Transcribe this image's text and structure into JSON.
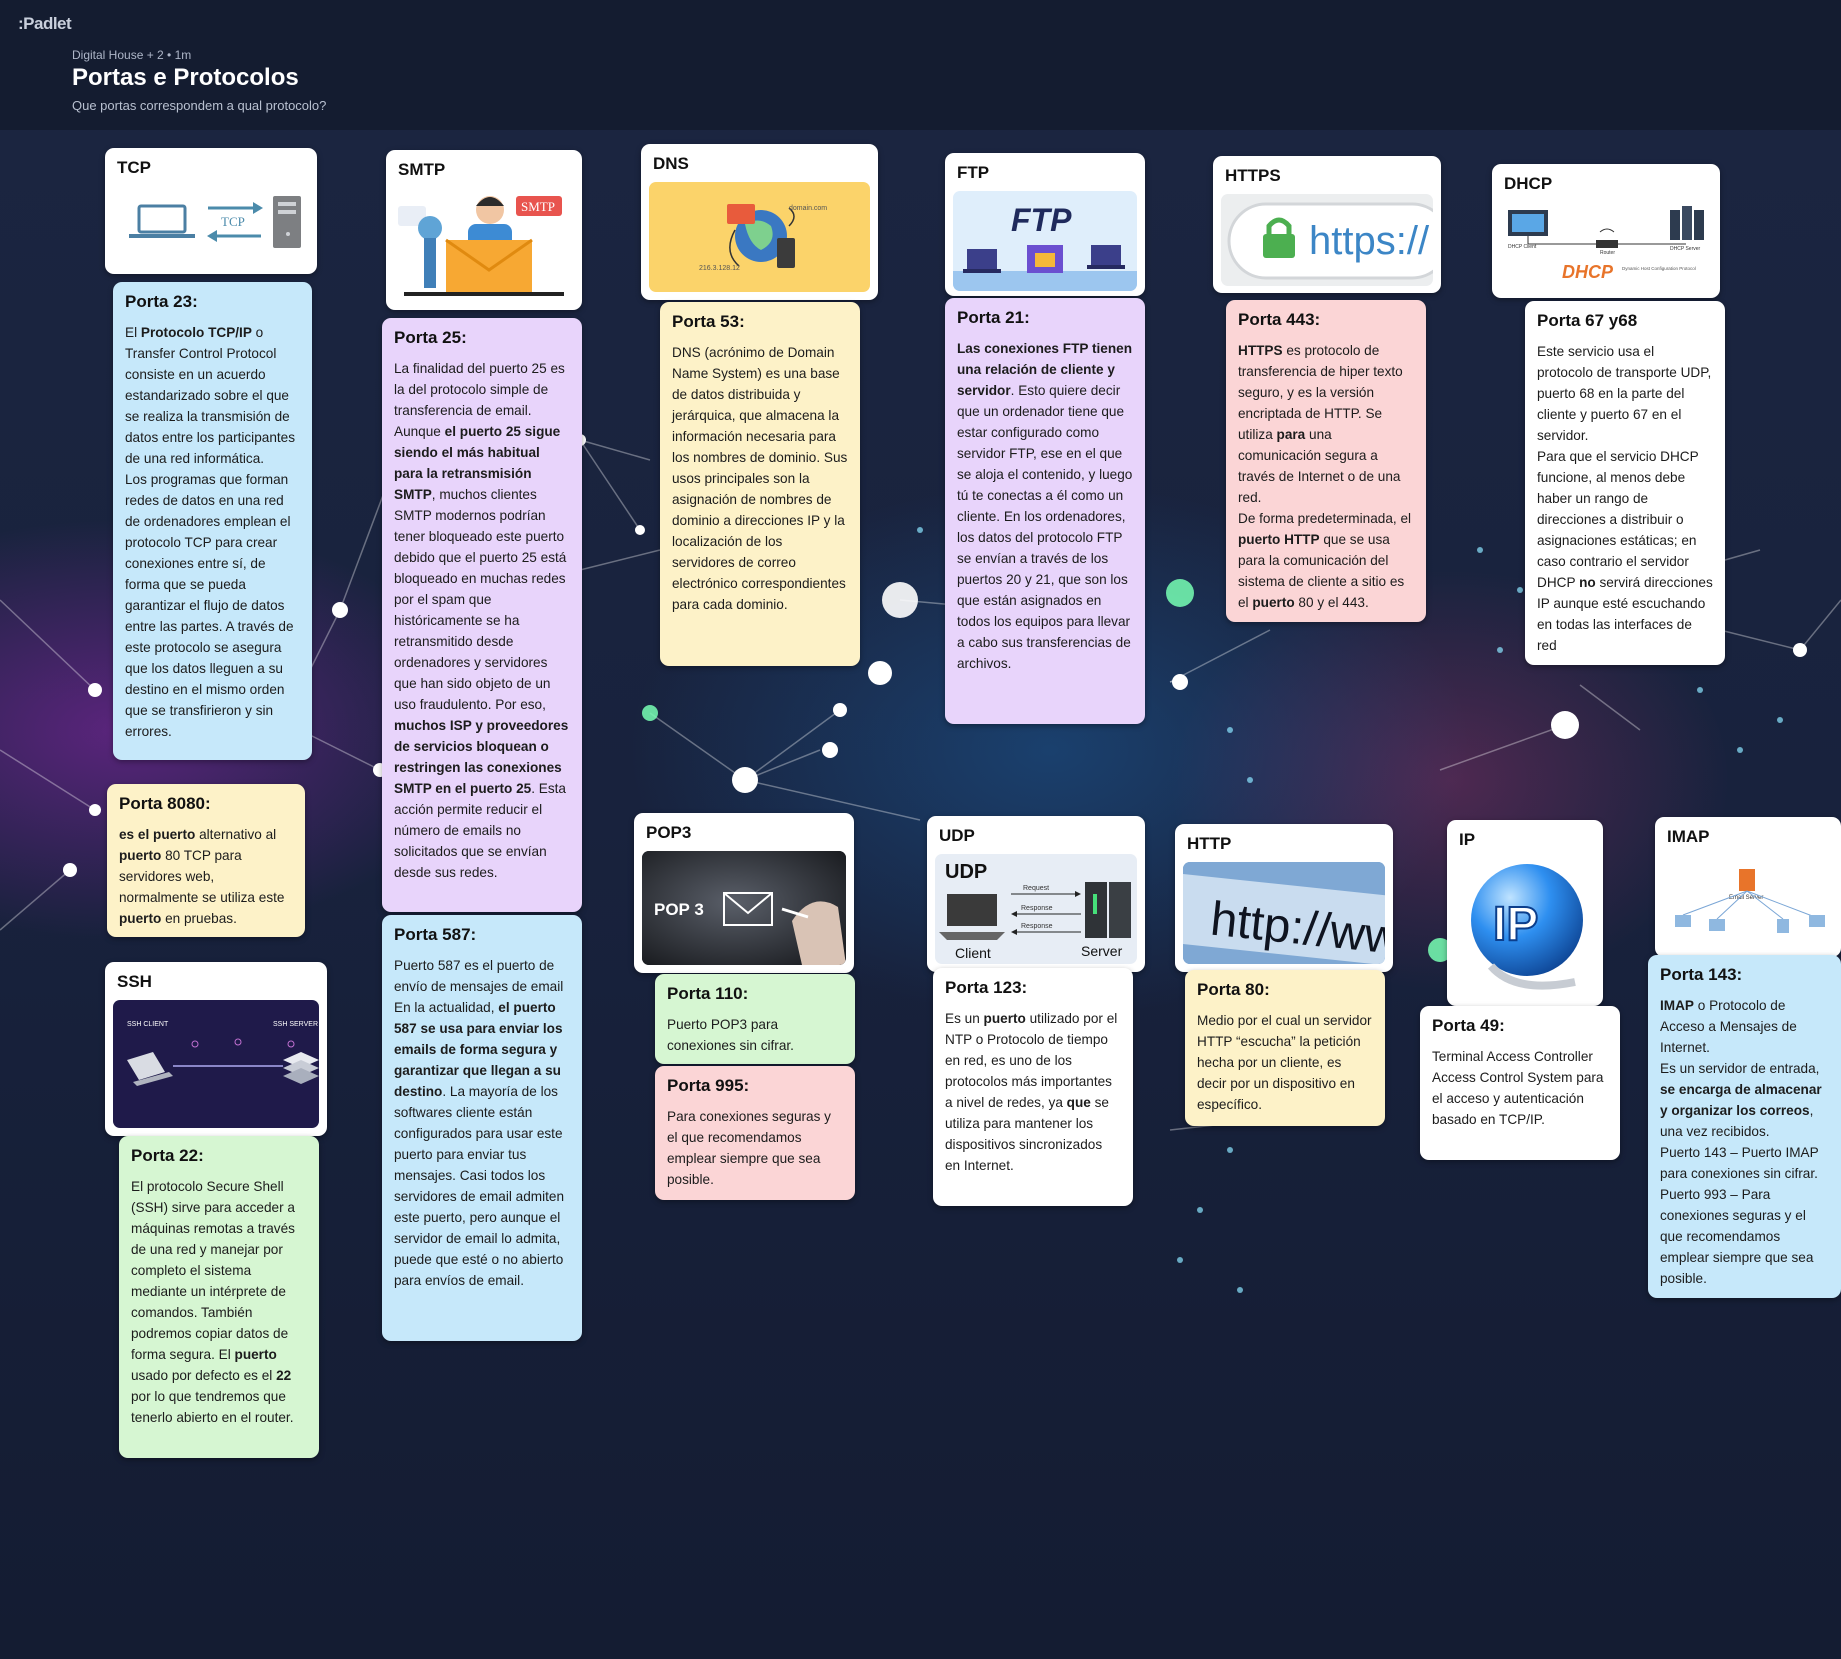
{
  "header": {
    "logo": ":Padlet",
    "meta": "Digital House + 2 • 1m",
    "title": "Portas e Protocolos",
    "subtitle": "Que portas correspondem a qual protocolo?"
  },
  "image_cards": {
    "tcp": {
      "title": "TCP",
      "image_text": "TCP"
    },
    "smtp": {
      "title": "SMTP",
      "image_text": "SMTP"
    },
    "dns": {
      "title": "DNS",
      "image_text_1": "domain.com",
      "image_text_2": "216.3.128.12"
    },
    "ftp": {
      "title": "FTP",
      "image_text": "FTP"
    },
    "https": {
      "title": "HTTPS",
      "image_text": "https://"
    },
    "dhcp": {
      "title": "DHCP",
      "image_text": "DHCP",
      "image_subtext": "Dynamic Host Configuration Protocol",
      "client": "DHCP Client",
      "router": "Router",
      "server": "DHCP Server"
    },
    "pop3": {
      "title": "POP3",
      "image_text": "POP 3"
    },
    "udp": {
      "title": "UDP",
      "image_text": "UDP",
      "request": "Request",
      "response": "Response",
      "client": "Client",
      "server": "Server"
    },
    "http": {
      "title": "HTTP",
      "image_text": "http://www"
    },
    "ip": {
      "title": "IP",
      "image_text": "IP"
    },
    "imap": {
      "title": "IMAP",
      "image_text": "Email Server"
    },
    "ssh": {
      "title": "SSH",
      "client": "SSH CLIENT",
      "server": "SSH SERVER"
    }
  },
  "text_cards": {
    "porta23": {
      "title": "Porta 23:",
      "p1_a": "El ",
      "p1_b": "Protocolo TCP/IP",
      "p1_c": " o Transfer Control Protocol consiste en un acuerdo estandarizado sobre el que se realiza la transmisión de datos entre los participantes de una red informática.",
      "p2": "Los programas que forman redes de datos en una red de ordenadores emplean el protocolo TCP para crear conexiones entre sí, de forma que se pueda garantizar el flujo de datos entre las partes. A través de este protocolo se asegura que los datos lleguen a su destino en el mismo orden que se transfirieron y sin errores."
    },
    "porta8080": {
      "title": "Porta 8080:",
      "a": "es el puerto",
      "b": " alternativo al ",
      "c": "puerto",
      "d": " 80 TCP para servidores web, normalmente se utiliza este ",
      "e": "puerto",
      "f": " en pruebas."
    },
    "porta25": {
      "title": "Porta 25:",
      "a": "La finalidad del puerto 25 es la del protocolo simple de transferencia de email. Aunque ",
      "b": "el puerto 25 sigue siendo el más habitual para la retransmisión SMTP",
      "c": ", muchos clientes SMTP modernos podrían tener bloqueado este puerto debido que el puerto 25 está bloqueado en muchas redes por el spam que históricamente se ha retransmitido desde ordenadores y servidores que han sido objeto de un uso fraudulento. Por eso, ",
      "d": "muchos ISP y proveedores de servicios bloquean o restringen las conexiones SMTP en el puerto 25",
      "e": ". Esta acción permite reducir el número de emails no solicitados que se envían desde sus redes."
    },
    "porta587": {
      "title": "Porta 587:",
      "p1": "Puerto 587 es el puerto de envío de mensajes de email",
      "a": "En la actualidad, ",
      "b": "el puerto 587 se usa para enviar los emails de forma segura y garantizar que llegan a su destino",
      "c": ". La mayoría de los softwares cliente están configurados para usar este puerto para enviar tus mensajes. Casi todos los servidores de email admiten este puerto, pero aunque el servidor de email lo admita, puede que esté o no abierto para envíos de email."
    },
    "porta53": {
      "title": "Porta 53:",
      "body": "DNS (acrónimo de Domain Name System) es una base de datos distribuida y jerárquica, que almacena la información necesaria para los nombres de dominio. Sus usos principales son la asignación de nombres de dominio a direcciones IP y la localización de los servidores de correo electrónico correspondientes para cada dominio."
    },
    "porta110": {
      "title": "Porta 110:",
      "body": "Puerto POP3 para conexiones sin cifrar."
    },
    "porta995": {
      "title": "Porta 995:",
      "body": "Para conexiones seguras y el que recomendamos emplear siempre que sea posible."
    },
    "porta21": {
      "title": "Porta 21:",
      "a": "Las conexiones FTP tienen una relación de cliente y servidor",
      "b": ". Esto quiere decir que un ordenador tiene que estar configurado como servidor FTP, ese en el que se aloja el contenido, y luego tú te conectas a él como un cliente. En los ordenadores, los datos del protocolo FTP se envían a través de los puertos 20 y 21, que son los que están asignados en todos los equipos para llevar a cabo sus transferencias de archivos."
    },
    "porta123": {
      "title": "Porta 123:",
      "a": "Es un ",
      "b": "puerto",
      "c": " utilizado por el NTP o Protocolo de tiempo en red, es uno de los protocolos más importantes a nivel de redes, ya ",
      "d": "que",
      "e": " se utiliza para mantener los dispositivos sincronizados en Internet."
    },
    "porta443": {
      "title": "Porta 443:",
      "a": "HTTPS",
      "b": " es protocolo de transferencia de hiper texto seguro, y es la versión encriptada de HTTP. Se utiliza ",
      "c": "para",
      "d": " una comunicación segura a través de Internet o de una red.",
      "e": "De forma predeterminada, el ",
      "f": "puerto HTTP",
      "g": " que se usa para la comunicación del sistema de cliente a sitio es el ",
      "h": "puerto",
      "i": " 80 y el 443."
    },
    "porta80": {
      "title": "Porta 80:",
      "body": "Medio por el cual un servidor HTTP “escucha” la petición hecha por un cliente, es decir por un dispositivo en específico."
    },
    "porta67": {
      "title": "Porta 67 y68",
      "p1": "Este servicio usa el protocolo de transporte UDP, puerto 68 en la parte del cliente y puerto 67 en el servidor.",
      "a": "Para que el servicio DHCP funcione, al menos debe haber un rango de direcciones a distribuir o asignaciones estáticas; en caso contrario el servidor DHCP ",
      "b": "no",
      "c": " servirá direcciones IP aunque esté escuchando en todas las interfaces de red"
    },
    "porta49": {
      "title": "Porta 49:",
      "body": "Terminal Access Controller Access Control System para el acceso y autenticación basado en TCP/IP."
    },
    "porta143": {
      "title": "Porta 143:",
      "a": "IMAP",
      "b": " o Protocolo de Acceso a Mensajes de Internet.",
      "c": "Es un servidor de entrada, ",
      "d": "se encarga de almacenar y organizar los correos",
      "e": ", una vez recibidos.",
      "p3": "Puerto 143 – Puerto IMAP para conexiones sin cifrar.",
      "p4": "Puerto 993 – Para conexiones seguras y el que recomendamos emplear siempre que sea posible."
    },
    "porta22": {
      "title": "Porta 22:",
      "a": "El protocolo Secure Shell (SSH) sirve para acceder a máquinas remotas a través de una red y manejar por completo el sistema mediante un intérprete de comandos. También podremos copiar datos de forma segura. El ",
      "b": "puerto",
      "c": " usado por defecto es el ",
      "d": "22",
      "e": " por lo que tendremos que tenerlo abierto en el router."
    }
  }
}
